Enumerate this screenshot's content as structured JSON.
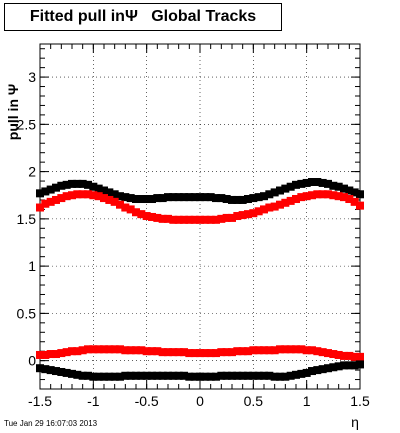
{
  "chart_data": {
    "type": "scatter",
    "title": "Fitted pull inΨ   Global Tracks",
    "xlabel": "η",
    "ylabel": "pull in  Ψ",
    "xlim": [
      -1.5,
      1.5
    ],
    "ylim": [
      -0.3,
      3.35
    ],
    "grid": true,
    "x_ticks": [
      "-1.5",
      "-1",
      "-0.5",
      "0",
      "0.5",
      "1",
      "1.5"
    ],
    "x_tick_values": [
      -1.5,
      -1,
      -0.5,
      0,
      0.5,
      1,
      1.5
    ],
    "y_ticks": [
      "0",
      "0.5",
      "1",
      "1.5",
      "2",
      "2.5",
      "3"
    ],
    "y_tick_values": [
      0,
      0.5,
      1,
      1.5,
      2,
      2.5,
      3
    ],
    "x": [
      -1.5,
      -1.45,
      -1.4,
      -1.35,
      -1.3,
      -1.25,
      -1.2,
      -1.15,
      -1.1,
      -1.05,
      -1.0,
      -0.95,
      -0.9,
      -0.85,
      -0.8,
      -0.75,
      -0.7,
      -0.65,
      -0.6,
      -0.55,
      -0.5,
      -0.45,
      -0.4,
      -0.35,
      -0.3,
      -0.25,
      -0.2,
      -0.15,
      -0.1,
      -0.05,
      0.0,
      0.05,
      0.1,
      0.15,
      0.2,
      0.25,
      0.3,
      0.35,
      0.4,
      0.45,
      0.5,
      0.55,
      0.6,
      0.65,
      0.7,
      0.75,
      0.8,
      0.85,
      0.9,
      0.95,
      1.0,
      1.05,
      1.1,
      1.15,
      1.2,
      1.25,
      1.3,
      1.35,
      1.4,
      1.45,
      1.5
    ],
    "series": [
      {
        "color": "#000000",
        "values": [
          1.77,
          1.79,
          1.81,
          1.83,
          1.85,
          1.86,
          1.87,
          1.87,
          1.87,
          1.86,
          1.84,
          1.82,
          1.8,
          1.78,
          1.76,
          1.74,
          1.73,
          1.72,
          1.71,
          1.71,
          1.71,
          1.71,
          1.72,
          1.72,
          1.73,
          1.73,
          1.73,
          1.73,
          1.73,
          1.73,
          1.73,
          1.73,
          1.73,
          1.72,
          1.72,
          1.71,
          1.7,
          1.7,
          1.7,
          1.71,
          1.72,
          1.73,
          1.74,
          1.76,
          1.78,
          1.8,
          1.82,
          1.84,
          1.86,
          1.87,
          1.88,
          1.89,
          1.89,
          1.88,
          1.87,
          1.85,
          1.84,
          1.82,
          1.8,
          1.78,
          1.76
        ]
      },
      {
        "color": "#ff0000",
        "values": [
          1.62,
          1.66,
          1.68,
          1.7,
          1.72,
          1.74,
          1.75,
          1.76,
          1.76,
          1.76,
          1.75,
          1.74,
          1.72,
          1.7,
          1.68,
          1.65,
          1.62,
          1.6,
          1.57,
          1.55,
          1.53,
          1.52,
          1.51,
          1.5,
          1.5,
          1.49,
          1.49,
          1.49,
          1.49,
          1.49,
          1.49,
          1.49,
          1.49,
          1.49,
          1.5,
          1.51,
          1.51,
          1.53,
          1.54,
          1.55,
          1.56,
          1.58,
          1.6,
          1.62,
          1.63,
          1.65,
          1.67,
          1.69,
          1.71,
          1.73,
          1.74,
          1.75,
          1.76,
          1.76,
          1.76,
          1.75,
          1.74,
          1.73,
          1.71,
          1.68,
          1.64
        ]
      },
      {
        "color": "#ff0000",
        "values": [
          0.06,
          0.06,
          0.07,
          0.07,
          0.08,
          0.09,
          0.1,
          0.1,
          0.11,
          0.12,
          0.12,
          0.12,
          0.12,
          0.12,
          0.12,
          0.12,
          0.11,
          0.11,
          0.11,
          0.11,
          0.1,
          0.1,
          0.1,
          0.09,
          0.09,
          0.09,
          0.09,
          0.09,
          0.08,
          0.08,
          0.08,
          0.08,
          0.08,
          0.08,
          0.09,
          0.09,
          0.09,
          0.1,
          0.1,
          0.1,
          0.11,
          0.11,
          0.11,
          0.11,
          0.11,
          0.12,
          0.12,
          0.12,
          0.12,
          0.12,
          0.11,
          0.11,
          0.1,
          0.09,
          0.08,
          0.07,
          0.06,
          0.05,
          0.05,
          0.04,
          0.04
        ]
      },
      {
        "color": "#000000",
        "values": [
          -0.08,
          -0.09,
          -0.1,
          -0.11,
          -0.12,
          -0.13,
          -0.14,
          -0.15,
          -0.16,
          -0.16,
          -0.17,
          -0.17,
          -0.17,
          -0.17,
          -0.17,
          -0.17,
          -0.16,
          -0.16,
          -0.16,
          -0.16,
          -0.16,
          -0.16,
          -0.16,
          -0.16,
          -0.16,
          -0.16,
          -0.16,
          -0.16,
          -0.17,
          -0.17,
          -0.17,
          -0.17,
          -0.17,
          -0.17,
          -0.16,
          -0.16,
          -0.16,
          -0.16,
          -0.16,
          -0.16,
          -0.16,
          -0.16,
          -0.16,
          -0.16,
          -0.17,
          -0.17,
          -0.17,
          -0.16,
          -0.15,
          -0.14,
          -0.13,
          -0.11,
          -0.1,
          -0.09,
          -0.08,
          -0.07,
          -0.06,
          -0.05,
          -0.05,
          -0.05,
          -0.04
        ]
      }
    ]
  },
  "footer": "Tue Jan 29 16:07:03 2013"
}
